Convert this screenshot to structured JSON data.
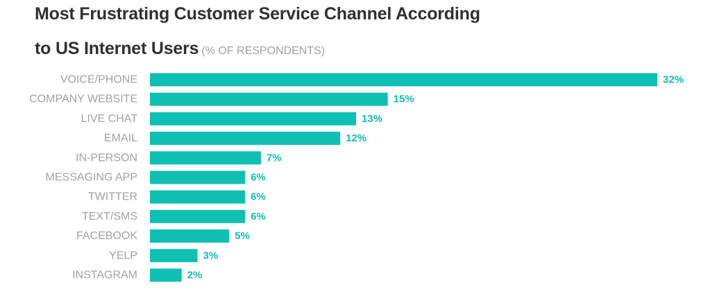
{
  "header": {
    "title_line1": "Most Frustrating Customer Service Channel According",
    "title_line2": "to US Internet Users",
    "subtitle": "(% OF RESPONDENTS)"
  },
  "colors": {
    "bar": "#0fbfb3",
    "value_label": "#0fbfb3",
    "category_label": "#9ea3a6",
    "title": "#2d3133"
  },
  "chart_data": {
    "type": "bar",
    "orientation": "horizontal",
    "title": "Most Frustrating Customer Service Channel According to US Internet Users",
    "subtitle": "(% OF RESPONDENTS)",
    "xlabel": "",
    "ylabel": "",
    "xlim": [
      0,
      32
    ],
    "grid": false,
    "legend": "none",
    "categories": [
      "VOICE/PHONE",
      "COMPANY WEBSITE",
      "LIVE CHAT",
      "EMAIL",
      "IN-PERSON",
      "MESSAGING APP",
      "TWITTER",
      "TEXT/SMS",
      "FACEBOOK",
      "YELP",
      "INSTAGRAM"
    ],
    "values": [
      32,
      15,
      13,
      12,
      7,
      6,
      6,
      6,
      5,
      3,
      2
    ],
    "value_labels": [
      "32%",
      "15%",
      "13%",
      "12%",
      "7%",
      "6%",
      "6%",
      "6%",
      "5%",
      "3%",
      "2%"
    ]
  }
}
